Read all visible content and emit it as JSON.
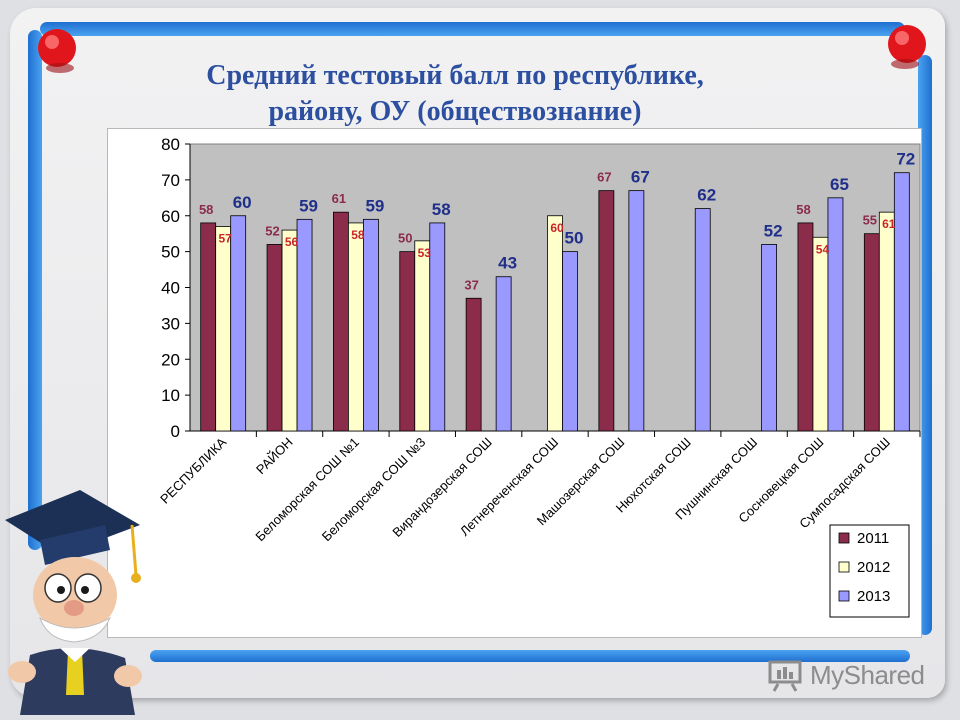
{
  "slide": {
    "title_line1": "Средний тестовый балл по республике,",
    "title_line2": "району, ОУ (обществознание)",
    "watermark": "MyShared"
  },
  "colors": {
    "frame_blue": "#1f6fd0",
    "title_blue": "#2c4fa0",
    "series_2011": "#8b2c4b",
    "series_2012": "#ffffcc",
    "series_2013": "#9999ff",
    "plot_bg": "#c0c0c0"
  },
  "chart_data": {
    "type": "bar",
    "title": "Средний тестовый балл по республике, району, ОУ (обществознание)",
    "categories": [
      "РЕСПУБЛИКА",
      "РАЙОН",
      "Беломорская СОШ №1",
      "Беломорская СОШ №3",
      "Вирандозерская СОШ",
      "Летнереченская СОШ",
      "Машозерская СОШ",
      "Нюхотская СОШ",
      "Пушнинская СОШ",
      "Сосновецкая СОШ",
      "Сумпосадская СОШ"
    ],
    "series": [
      {
        "name": "2011",
        "color": "#8b2c4b",
        "label_color": "#8b2c4b",
        "values": [
          58,
          52,
          61,
          50,
          37,
          null,
          67,
          null,
          null,
          58,
          55
        ]
      },
      {
        "name": "2012",
        "color": "#ffffcc",
        "label_color": "#c8262c",
        "values": [
          57,
          56,
          58,
          53,
          null,
          60,
          null,
          null,
          null,
          54,
          61
        ]
      },
      {
        "name": "2013",
        "color": "#9999ff",
        "label_color": "#1f2f8a",
        "values": [
          60,
          59,
          59,
          58,
          43,
          50,
          67,
          62,
          52,
          65,
          72
        ]
      }
    ],
    "yticks": [
      "80",
      "70",
      "60",
      "50",
      "40",
      "30",
      "20",
      "10",
      "0"
    ],
    "ylim": [
      0,
      80
    ],
    "grid": false,
    "legend_position": "bottom-right"
  }
}
